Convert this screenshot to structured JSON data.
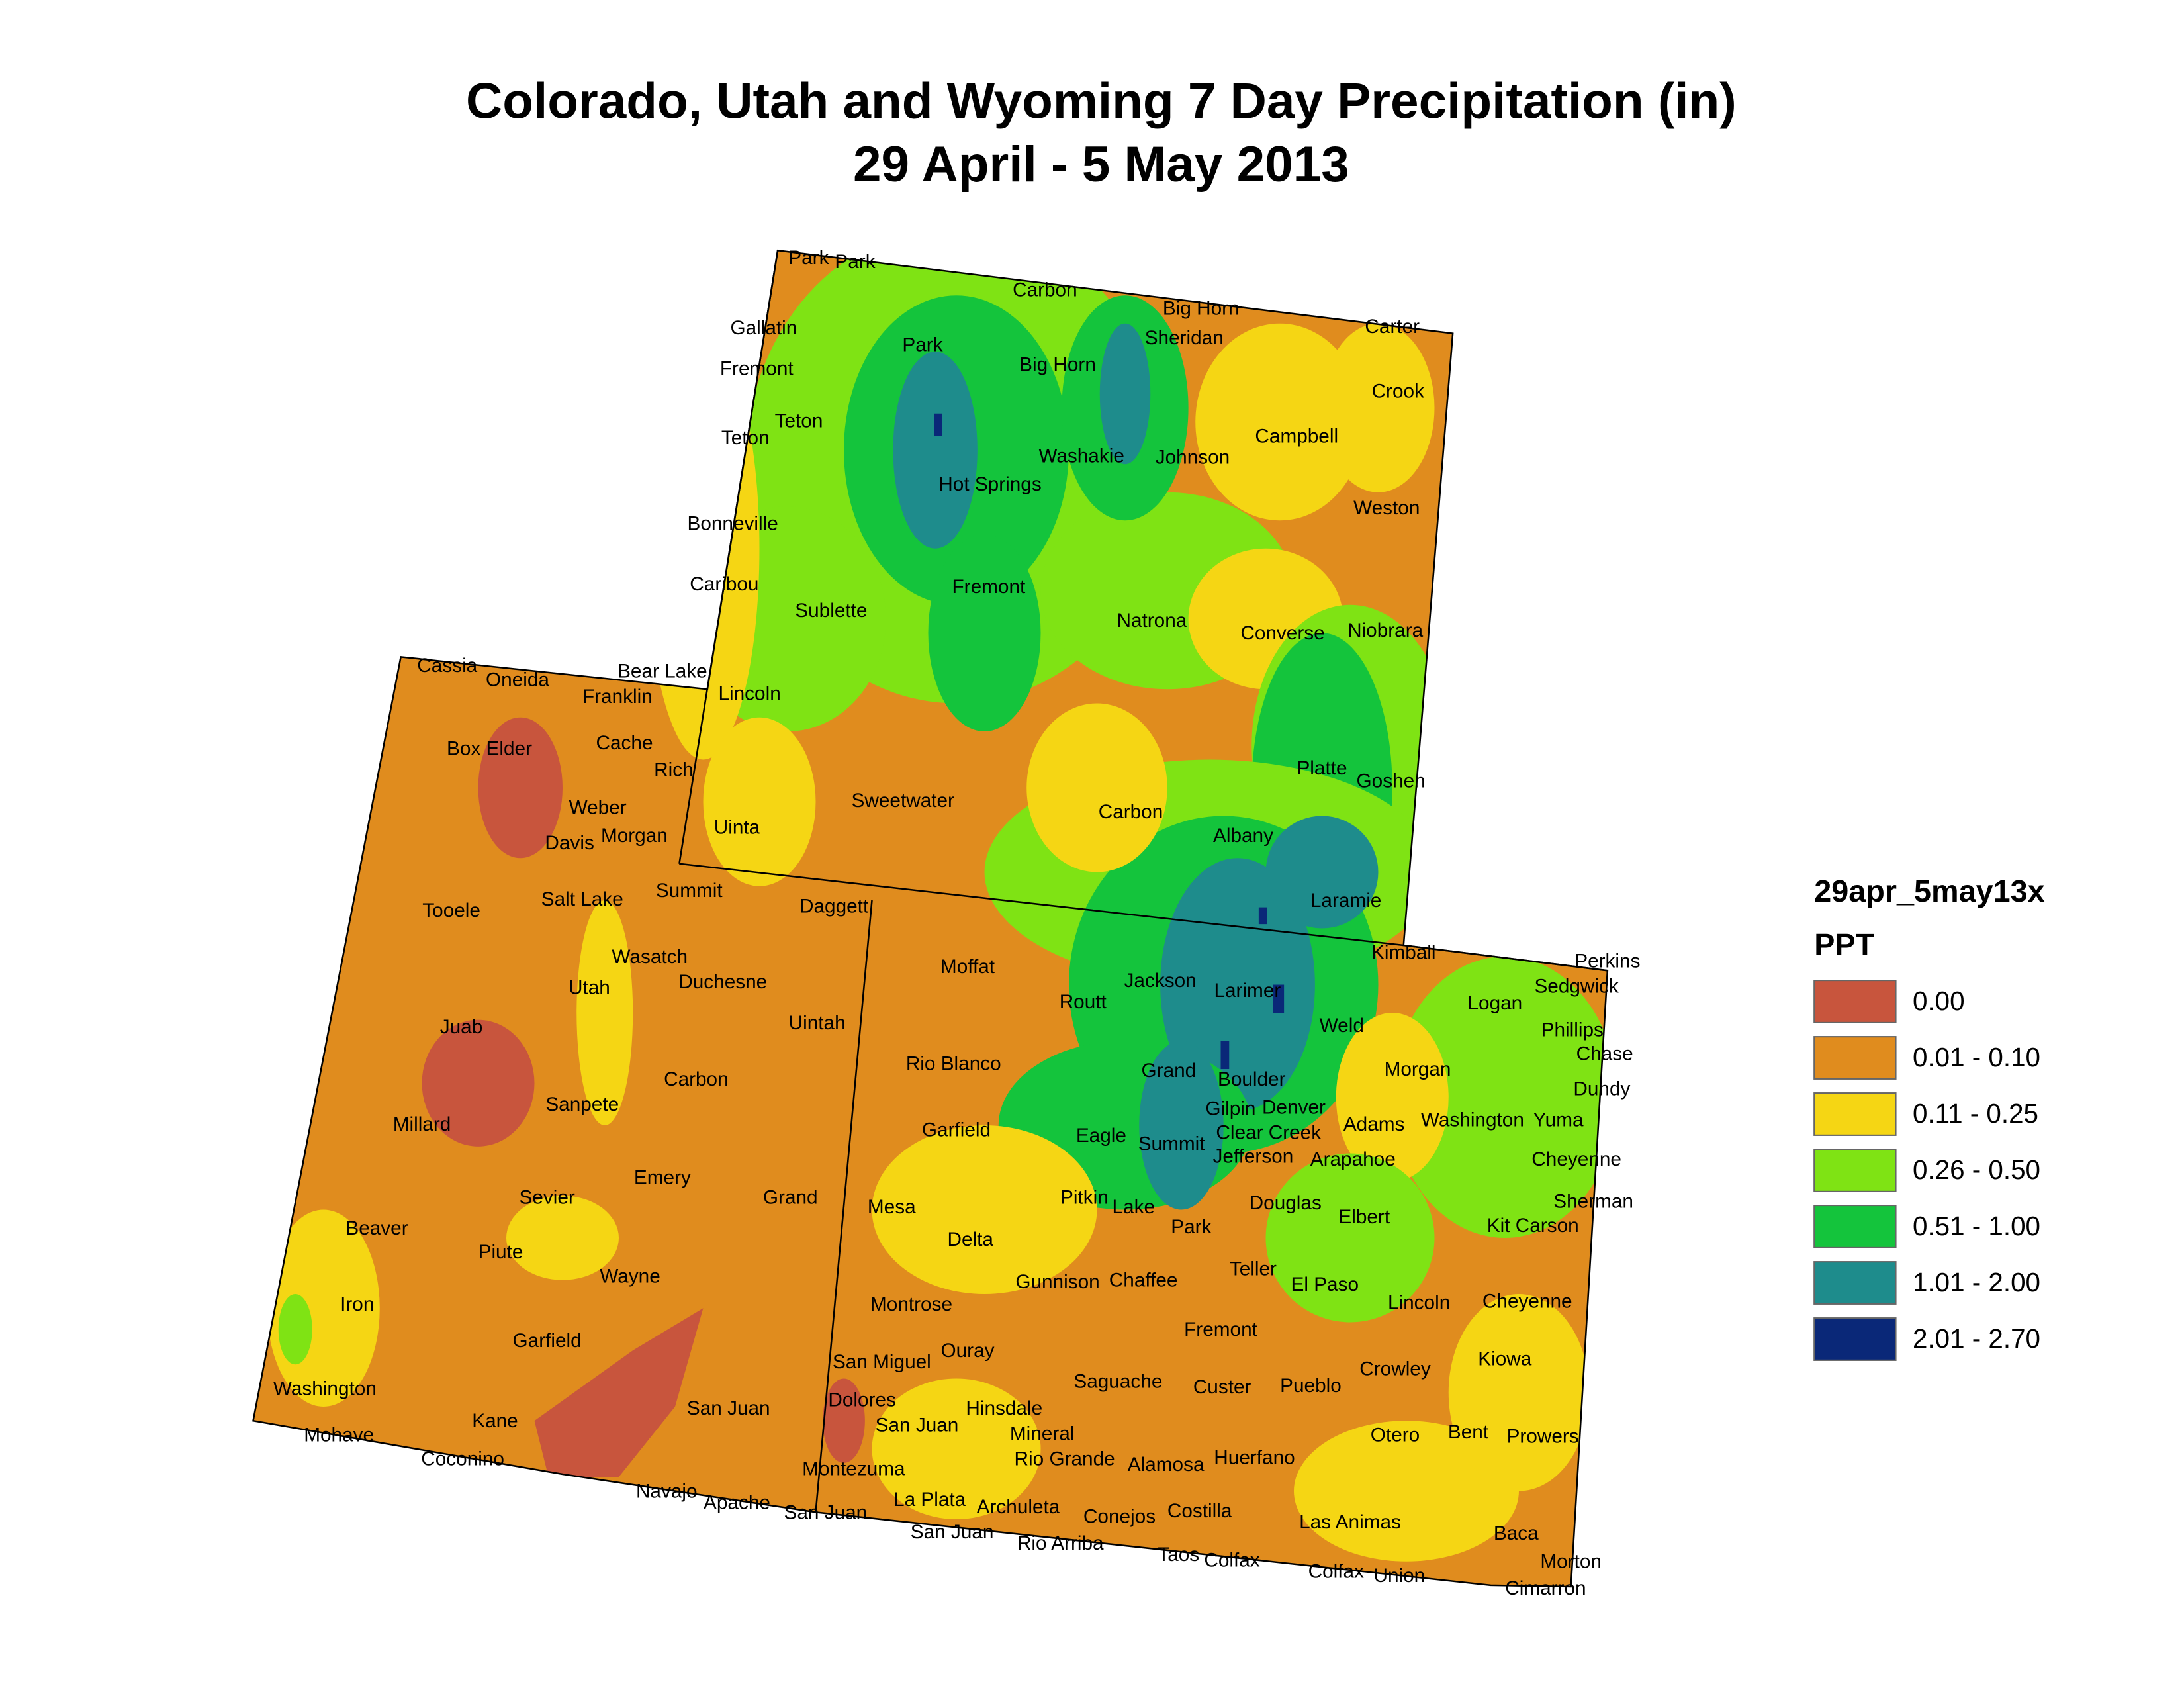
{
  "title": {
    "line1": "Colorado, Utah and Wyoming 7 Day Precipitation (in)",
    "line2": "29 April - 5 May 2013"
  },
  "legend": {
    "title": "29apr_5may13x",
    "subtitle": "PPT",
    "items": [
      {
        "label": "0.00",
        "color": "#c8553d"
      },
      {
        "label": "0.01 - 0.10",
        "color": "#e08c1e"
      },
      {
        "label": "0.11 - 0.25",
        "color": "#f5d614"
      },
      {
        "label": "0.26 - 0.50",
        "color": "#7fe314"
      },
      {
        "label": "0.51 - 1.00",
        "color": "#14c43c"
      },
      {
        "label": "1.01 - 2.00",
        "color": "#1e8c8c"
      },
      {
        "label": "2.01 - 2.70",
        "color": "#0a2878"
      }
    ]
  },
  "map": {
    "labels": [
      "Park",
      "Park",
      "Carbon",
      "Big Horn",
      "Gallatin",
      "Carter",
      "Sheridan",
      "Park",
      "Fremont",
      "Big Horn",
      "Crook",
      "Teton",
      "Teton",
      "Washakie",
      "Johnson",
      "Campbell",
      "Hot Springs",
      "Weston",
      "Bonneville",
      "Caribou",
      "Fremont",
      "Sublette",
      "Natrona",
      "Converse",
      "Niobrara",
      "Cassia",
      "Bear Lake",
      "Oneida",
      "Franklin",
      "Lincoln",
      "Box Elder",
      "Cache",
      "Rich",
      "Platte",
      "Goshen",
      "Sweetwater",
      "Weber",
      "Carbon",
      "Uinta",
      "Davis",
      "Morgan",
      "Albany",
      "Tooele",
      "Salt Lake",
      "Summit",
      "Daggett",
      "Laramie",
      "Wasatch",
      "Duchesne",
      "Moffat",
      "Kimball",
      "Perkins",
      "Sedgwick",
      "Logan",
      "Jackson",
      "Larimer",
      "Routt",
      "Utah",
      "Uintah",
      "Juab",
      "Phillips",
      "Weld",
      "Chase",
      "Carbon",
      "Rio Blanco",
      "Grand",
      "Boulder",
      "Morgan",
      "Dundy",
      "Sanpete",
      "Gilpin",
      "Denver",
      "Adams",
      "Washington",
      "Yuma",
      "Millard",
      "Clear Creek",
      "Garfield",
      "Eagle",
      "Summit",
      "Jefferson",
      "Arapahoe",
      "Cheyenne",
      "Emery",
      "Grand",
      "Sevier",
      "Pitkin",
      "Lake",
      "Mesa",
      "Douglas",
      "Sherman",
      "Elbert",
      "Beaver",
      "Kit Carson",
      "Park",
      "Delta",
      "Piute",
      "Teller",
      "Wayne",
      "Gunnison",
      "Chaffee",
      "El Paso",
      "Lincoln",
      "Cheyenne",
      "Iron",
      "Montrose",
      "Fremont",
      "Garfield",
      "Ouray",
      "San Miguel",
      "Kiowa",
      "Crowley",
      "Saguache",
      "Custer",
      "Pueblo",
      "Washington",
      "Dolores",
      "Hinsdale",
      "San Juan",
      "Kane",
      "San Juan",
      "Bent",
      "Prowers",
      "Otero",
      "Mohave",
      "Mineral",
      "Rio Grande",
      "Alamosa",
      "Huerfano",
      "Coconino",
      "Montezuma",
      "Navajo",
      "La Plata",
      "Apache",
      "Archuleta",
      "San Juan",
      "Conejos",
      "Costilla",
      "Las Animas",
      "Baca",
      "San Juan",
      "Rio Arriba",
      "Taos",
      "Colfax",
      "Morton",
      "Colfax",
      "Union",
      "Cimarron"
    ]
  }
}
